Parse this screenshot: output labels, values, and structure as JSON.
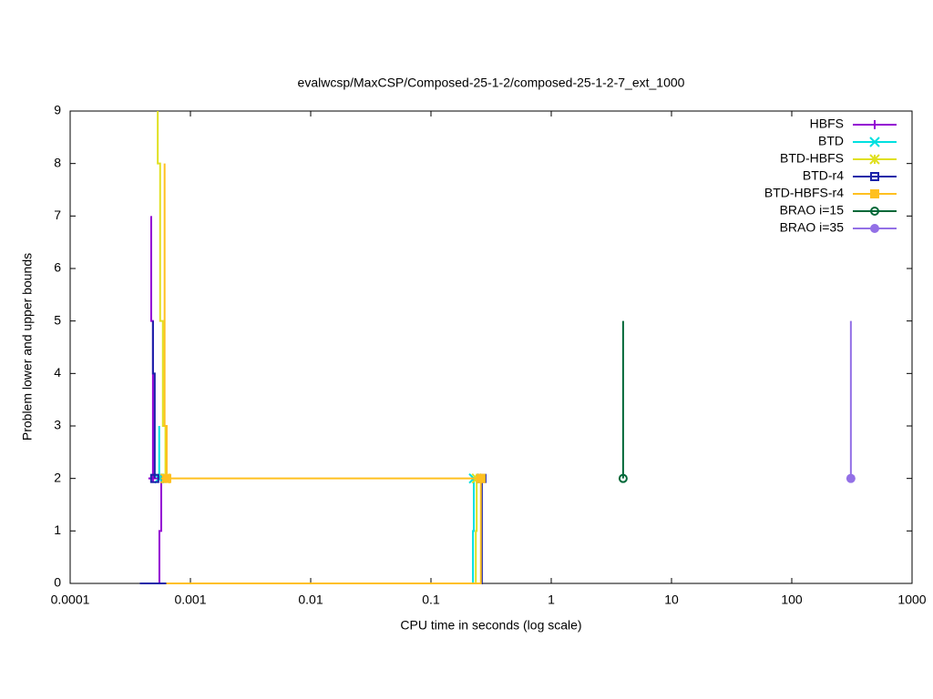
{
  "chart_data": {
    "type": "line",
    "title": "evalwcsp/MaxCSP/Composed-25-1-2/composed-25-1-2-7_ext_1000",
    "x_label": "CPU time in seconds (log scale)",
    "y_label": "Problem lower and upper bounds",
    "x_log_scale": true,
    "xlim": [
      0.0001,
      1000
    ],
    "xticks": [
      0.0001,
      0.001,
      0.01,
      0.1,
      1,
      10,
      100,
      1000
    ],
    "ylim": [
      0,
      9
    ],
    "yticks": [
      0,
      1,
      2,
      3,
      4,
      5,
      6,
      7,
      8,
      9
    ],
    "grid": false,
    "legend_position": "top-right",
    "series": [
      {
        "name": "HBFS",
        "color": "#9400d3",
        "marker": "plus",
        "x": [
          0.000552,
          0.000552,
          0.000572,
          0.000572,
          null,
          0.000472,
          0.000472,
          0.000488,
          0.000488
        ],
        "values": [
          0,
          1,
          1,
          2,
          null,
          7,
          5,
          5,
          2
        ]
      },
      {
        "name": "BTD",
        "color": "#00e0e0",
        "marker": "cross",
        "x": [
          0.00055,
          0.00055,
          null,
          0.2235,
          0.2235,
          0.227,
          0.227
        ],
        "values": [
          3,
          2,
          null,
          0,
          1,
          1,
          2
        ]
      },
      {
        "name": "BTD-HBFS",
        "color": "#e0e020",
        "marker": "star",
        "x": [
          0.000535,
          0.000535,
          0.00056,
          0.00056,
          0.00059,
          0.00059,
          0.00062,
          0.00062,
          null,
          0.236,
          0.236,
          0.24,
          0.24
        ],
        "values": [
          9,
          8,
          8,
          5,
          5,
          3,
          3,
          2,
          null,
          0,
          1,
          1,
          2
        ]
      },
      {
        "name": "BTD-r4",
        "color": "#1a22a8",
        "marker": "box-open",
        "x": [
          0.00038,
          0.265,
          0.265,
          null,
          0.000488,
          0.000488,
          0.000505,
          0.000505
        ],
        "values": [
          0,
          0,
          2,
          null,
          5,
          4,
          4,
          2
        ]
      },
      {
        "name": "BTD-HBFS-r4",
        "color": "#ffc020",
        "marker": "box-filled",
        "x": [
          0.00061,
          0.00061,
          0.000635,
          0.000635,
          null,
          0.00063,
          0.26,
          0.26,
          null,
          0.000635,
          0.26
        ],
        "values": [
          8,
          3,
          3,
          2,
          null,
          0,
          0,
          2,
          null,
          2,
          2
        ]
      },
      {
        "name": "BRAO i=15",
        "color": "#006838",
        "marker": "circle-open",
        "x": [
          3.96,
          3.96
        ],
        "values": [
          5,
          2
        ]
      },
      {
        "name": "BRAO i=35",
        "color": "#9370e6",
        "marker": "circle-filled",
        "x": [
          310,
          310
        ],
        "values": [
          5,
          2
        ]
      }
    ]
  }
}
